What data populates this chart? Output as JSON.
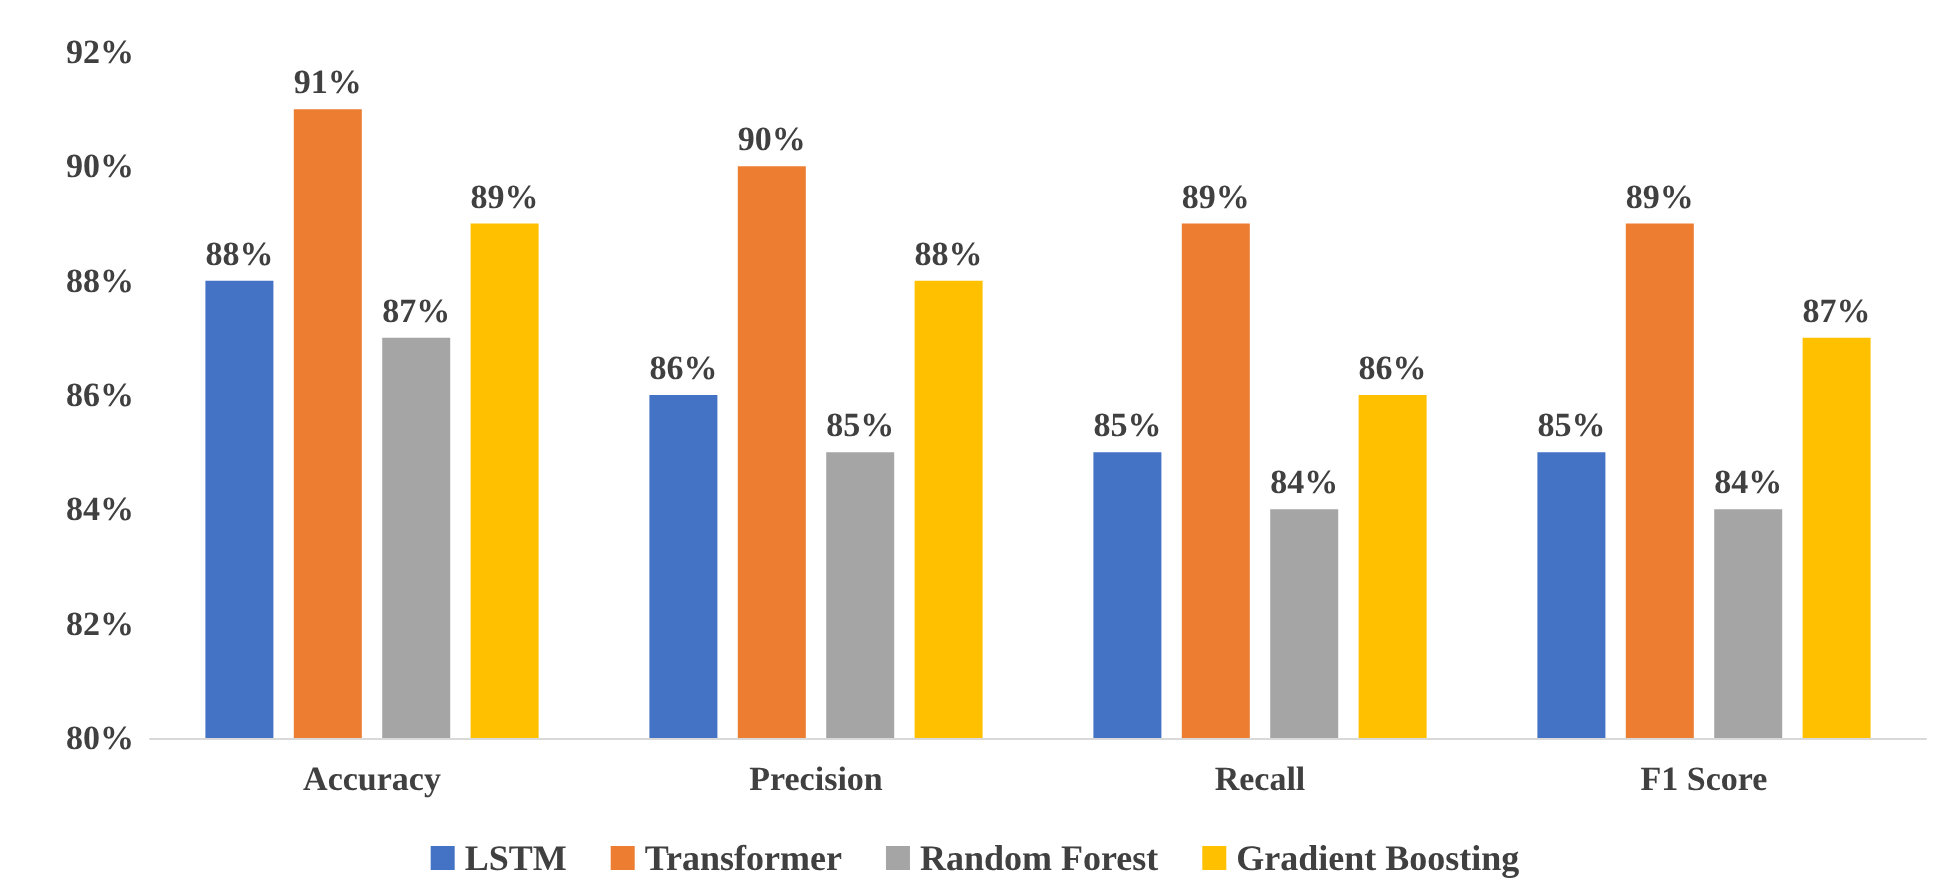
{
  "chart_data": {
    "type": "bar",
    "categories": [
      "Accuracy",
      "Precision",
      "Recall",
      "F1 Score"
    ],
    "series": [
      {
        "name": "LSTM",
        "color": "#4472c4",
        "values": [
          88,
          86,
          85,
          85
        ],
        "value_labels": [
          "88%",
          "86%",
          "85%",
          "85%"
        ]
      },
      {
        "name": "Transformer",
        "color": "#ed7d31",
        "values": [
          91,
          90,
          89,
          89
        ],
        "value_labels": [
          "91%",
          "90%",
          "89%",
          "89%"
        ]
      },
      {
        "name": "Random Forest",
        "color": "#a5a5a5",
        "values": [
          87,
          85,
          84,
          84
        ],
        "value_labels": [
          "87%",
          "85%",
          "84%",
          "84%"
        ]
      },
      {
        "name": "Gradient Boosting",
        "color": "#ffc000",
        "values": [
          89,
          88,
          86,
          87
        ],
        "value_labels": [
          "89%",
          "88%",
          "86%",
          "87%"
        ]
      }
    ],
    "ylim": [
      80,
      92
    ],
    "yticks": [
      {
        "value": 80,
        "label": "80%"
      },
      {
        "value": 82,
        "label": "82%"
      },
      {
        "value": 84,
        "label": "84%"
      },
      {
        "value": 86,
        "label": "86%"
      },
      {
        "value": 88,
        "label": "88%"
      },
      {
        "value": 90,
        "label": "90%"
      },
      {
        "value": 92,
        "label": "92%"
      }
    ],
    "grid": false,
    "legend": "bottom"
  }
}
